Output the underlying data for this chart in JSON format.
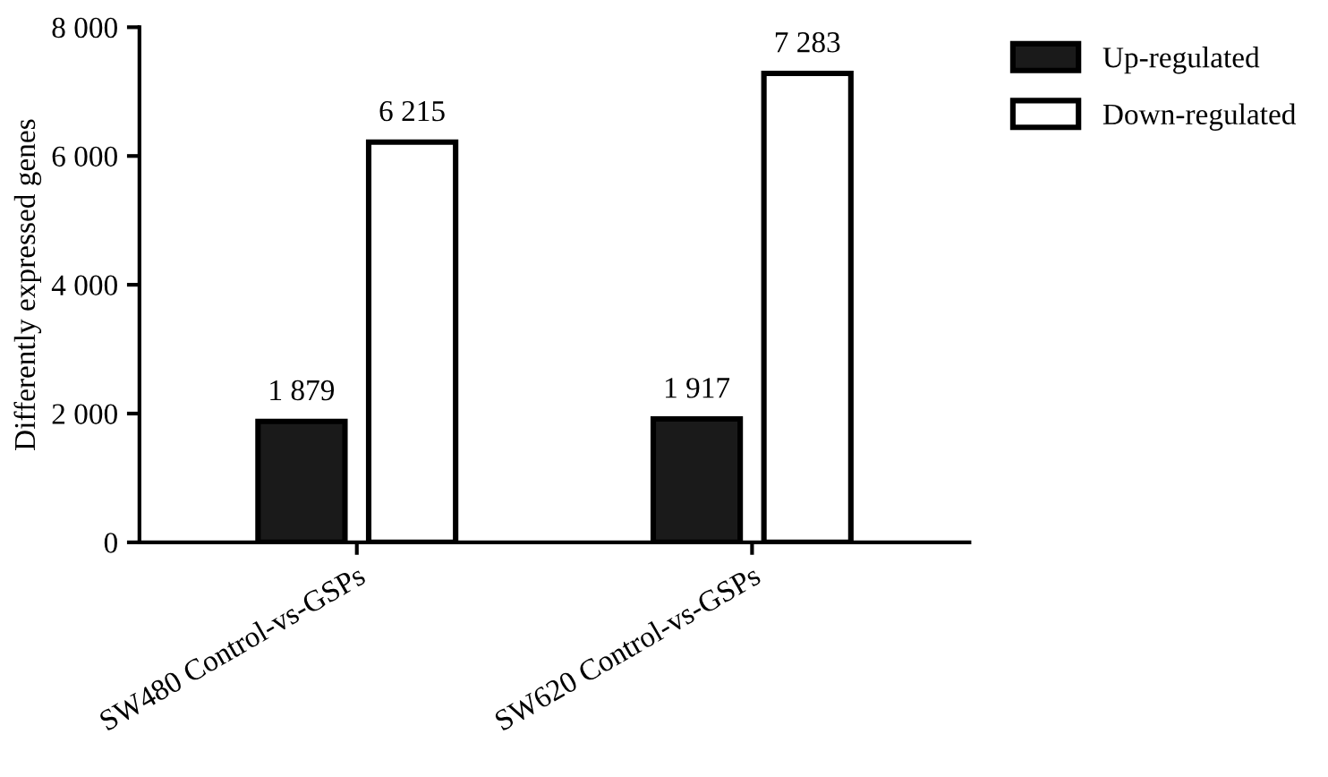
{
  "chart_data": {
    "type": "bar",
    "ylabel": "Differently expressed genes",
    "categories": [
      "SW480 Control-vs-GSPs",
      "SW620 Control-vs-GSPs"
    ],
    "series": [
      {
        "name": "Up-regulated",
        "color": "#1a1a1a",
        "values": [
          1879,
          1917
        ],
        "value_labels": [
          "1 879",
          "1 917"
        ]
      },
      {
        "name": "Down-regulated",
        "color": "#ffffff",
        "values": [
          6215,
          7283
        ],
        "value_labels": [
          "6 215",
          "7 283"
        ]
      }
    ],
    "ylim": [
      0,
      8000
    ],
    "yticks": [
      0,
      {
        "value": 2000,
        "label": "2 000"
      },
      {
        "value": 4000,
        "label": "4 000"
      },
      {
        "value": 6000,
        "label": "6 000"
      },
      {
        "value": 8000,
        "label": "8 000"
      }
    ],
    "grid": false,
    "legend": "top right"
  }
}
